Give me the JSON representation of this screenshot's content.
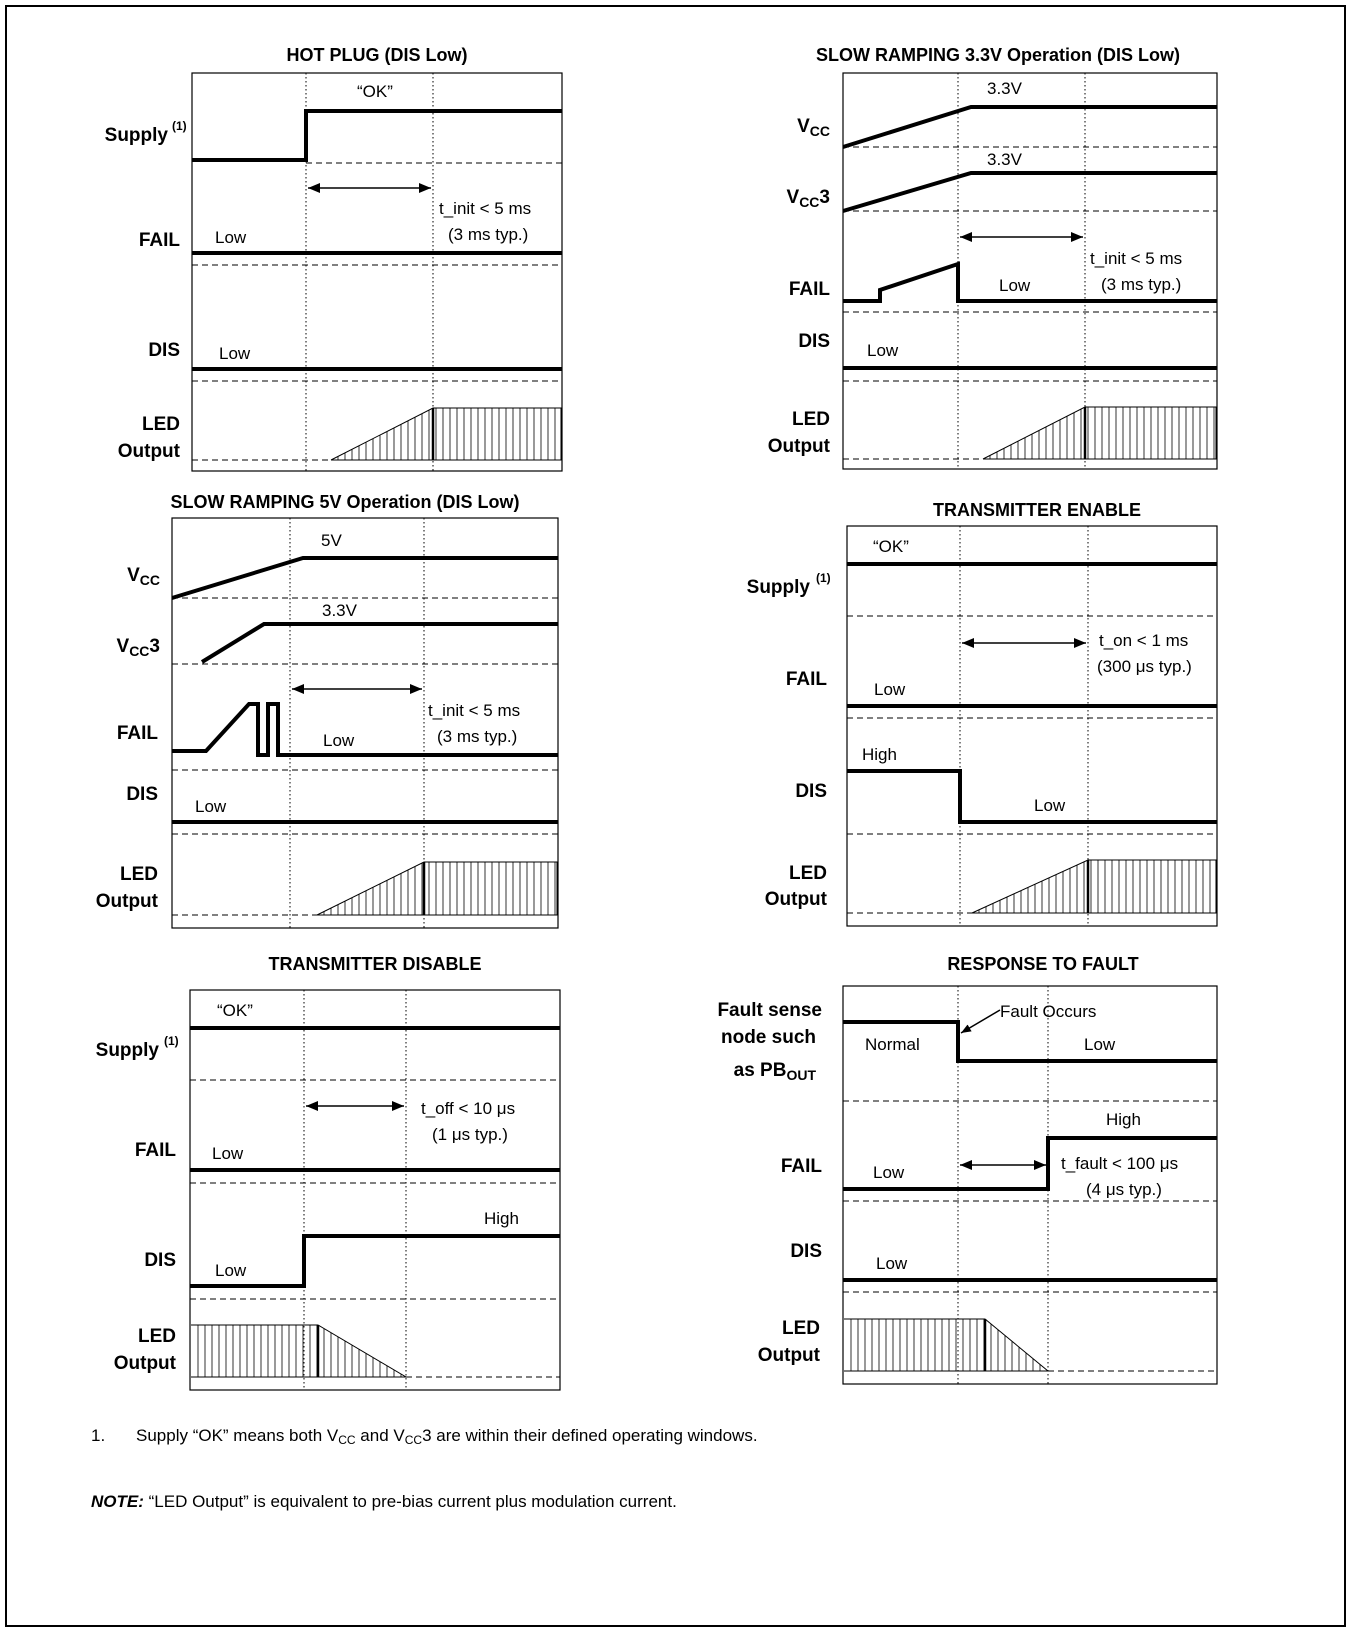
{
  "panels": [
    {
      "title": "HOT PLUG (DIS Low)",
      "labels": {
        "supply": "Supply",
        "supply_sup": "(1)",
        "fail": "FAIL",
        "dis": "DIS",
        "led1": "LED",
        "led2": "Output"
      },
      "texts": {
        "ok": "“OK”",
        "fail_low": "Low",
        "dis_low": "Low",
        "timing1": "t_init <  5 ms",
        "timing2": "(3 ms typ.)"
      }
    },
    {
      "title": "SLOW RAMPING 3.3V Operation (DIS Low)",
      "labels": {
        "vcc": "VCC",
        "vcc3": "VCC3",
        "fail": "FAIL",
        "dis": "DIS",
        "led1": "LED",
        "led2": "Output"
      },
      "texts": {
        "vcc_val": "3.3V",
        "vcc3_val": "3.3V",
        "fail_low": "Low",
        "dis_low": "Low",
        "timing1": "t_init <  5 ms",
        "timing2": "(3 ms typ.)"
      }
    },
    {
      "title": "SLOW RAMPING 5V Operation (DIS Low)",
      "labels": {
        "vcc": "VCC",
        "vcc3": "VCC3",
        "fail": "FAIL",
        "dis": "DIS",
        "led1": "LED",
        "led2": "Output"
      },
      "texts": {
        "vcc_val": "5V",
        "vcc3_val": "3.3V",
        "fail_low": "Low",
        "dis_low": "Low",
        "timing1": "t_init <  5 ms",
        "timing2": "(3 ms typ.)"
      }
    },
    {
      "title": "TRANSMITTER ENABLE",
      "labels": {
        "supply": "Supply",
        "supply_sup": "(1)",
        "fail": "FAIL",
        "dis": "DIS",
        "led1": "LED",
        "led2": "Output"
      },
      "texts": {
        "ok": "“OK”",
        "fail_low": "Low",
        "dis_high": "High",
        "dis_low": "Low",
        "timing1": "t_on < 1 ms",
        "timing2": "(300 μs typ.)"
      }
    },
    {
      "title": "TRANSMITTER DISABLE",
      "labels": {
        "supply": "Supply",
        "supply_sup": "(1)",
        "fail": "FAIL",
        "dis": "DIS",
        "led1": "LED",
        "led2": "Output"
      },
      "texts": {
        "ok": "“OK”",
        "fail_low": "Low",
        "dis_low": "Low",
        "dis_high": "High",
        "timing1": "t_off < 10 μs",
        "timing2": "(1 μs typ.)"
      }
    },
    {
      "title": "RESPONSE TO FAULT",
      "labels": {
        "fs1": "Fault sense",
        "fs2": "node such",
        "fs3": "as PBOUT",
        "fail": "FAIL",
        "dis": "DIS",
        "led1": "LED",
        "led2": "Output"
      },
      "texts": {
        "fault_occurs": "Fault Occurs",
        "normal": "Normal",
        "fs_low": "Low",
        "fail_high": "High",
        "fail_low": "Low",
        "dis_low": "Low",
        "timing1": "t_fault < 100 μs",
        "timing2": "(4 μs typ.)"
      }
    }
  ],
  "footnote": {
    "number": "1.",
    "text_a": "Supply “OK” means both V",
    "sub_a": "CC",
    "text_b": " and V",
    "sub_b": "CC",
    "text_c": "3 are within their defined operating windows."
  },
  "note": {
    "label": "NOTE:",
    "text": " “LED Output” is equivalent to pre-bias current plus modulation current."
  }
}
